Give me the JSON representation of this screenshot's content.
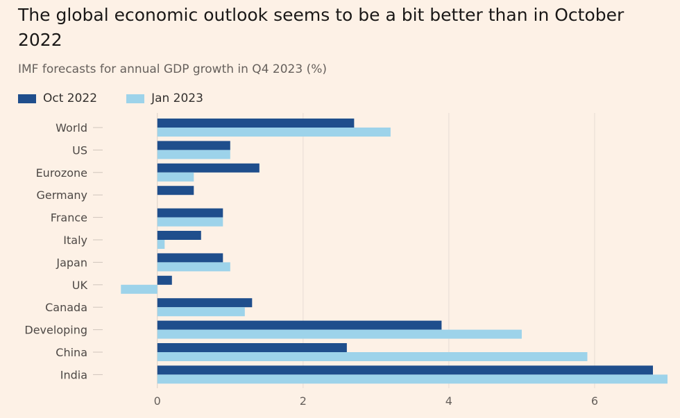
{
  "chart_data": {
    "type": "bar",
    "orientation": "horizontal",
    "title": "The global economic outlook seems to be a bit better than in October 2022",
    "subtitle": "IMF forecasts for annual GDP growth in Q4 2023 (%)",
    "categories": [
      "World",
      "US",
      "Eurozone",
      "Germany",
      "France",
      "Italy",
      "Japan",
      "UK",
      "Canada",
      "Developing",
      "China",
      "India"
    ],
    "series": [
      {
        "name": "Oct 2022",
        "color": "#1f4e8c",
        "values": [
          2.7,
          1.0,
          1.4,
          0.5,
          0.9,
          0.6,
          0.9,
          0.2,
          1.3,
          3.9,
          2.6,
          6.8
        ]
      },
      {
        "name": "Jan 2023",
        "color": "#9dd3ea",
        "values": [
          3.2,
          1.0,
          0.5,
          0.0,
          0.9,
          0.1,
          1.0,
          -0.5,
          1.2,
          5.0,
          5.9,
          7.0
        ]
      }
    ],
    "xlim": [
      -0.75,
      7.0
    ],
    "xticks": [
      0,
      2,
      4,
      6
    ],
    "xlabel": "",
    "ylabel": "",
    "legend": "top-left"
  }
}
